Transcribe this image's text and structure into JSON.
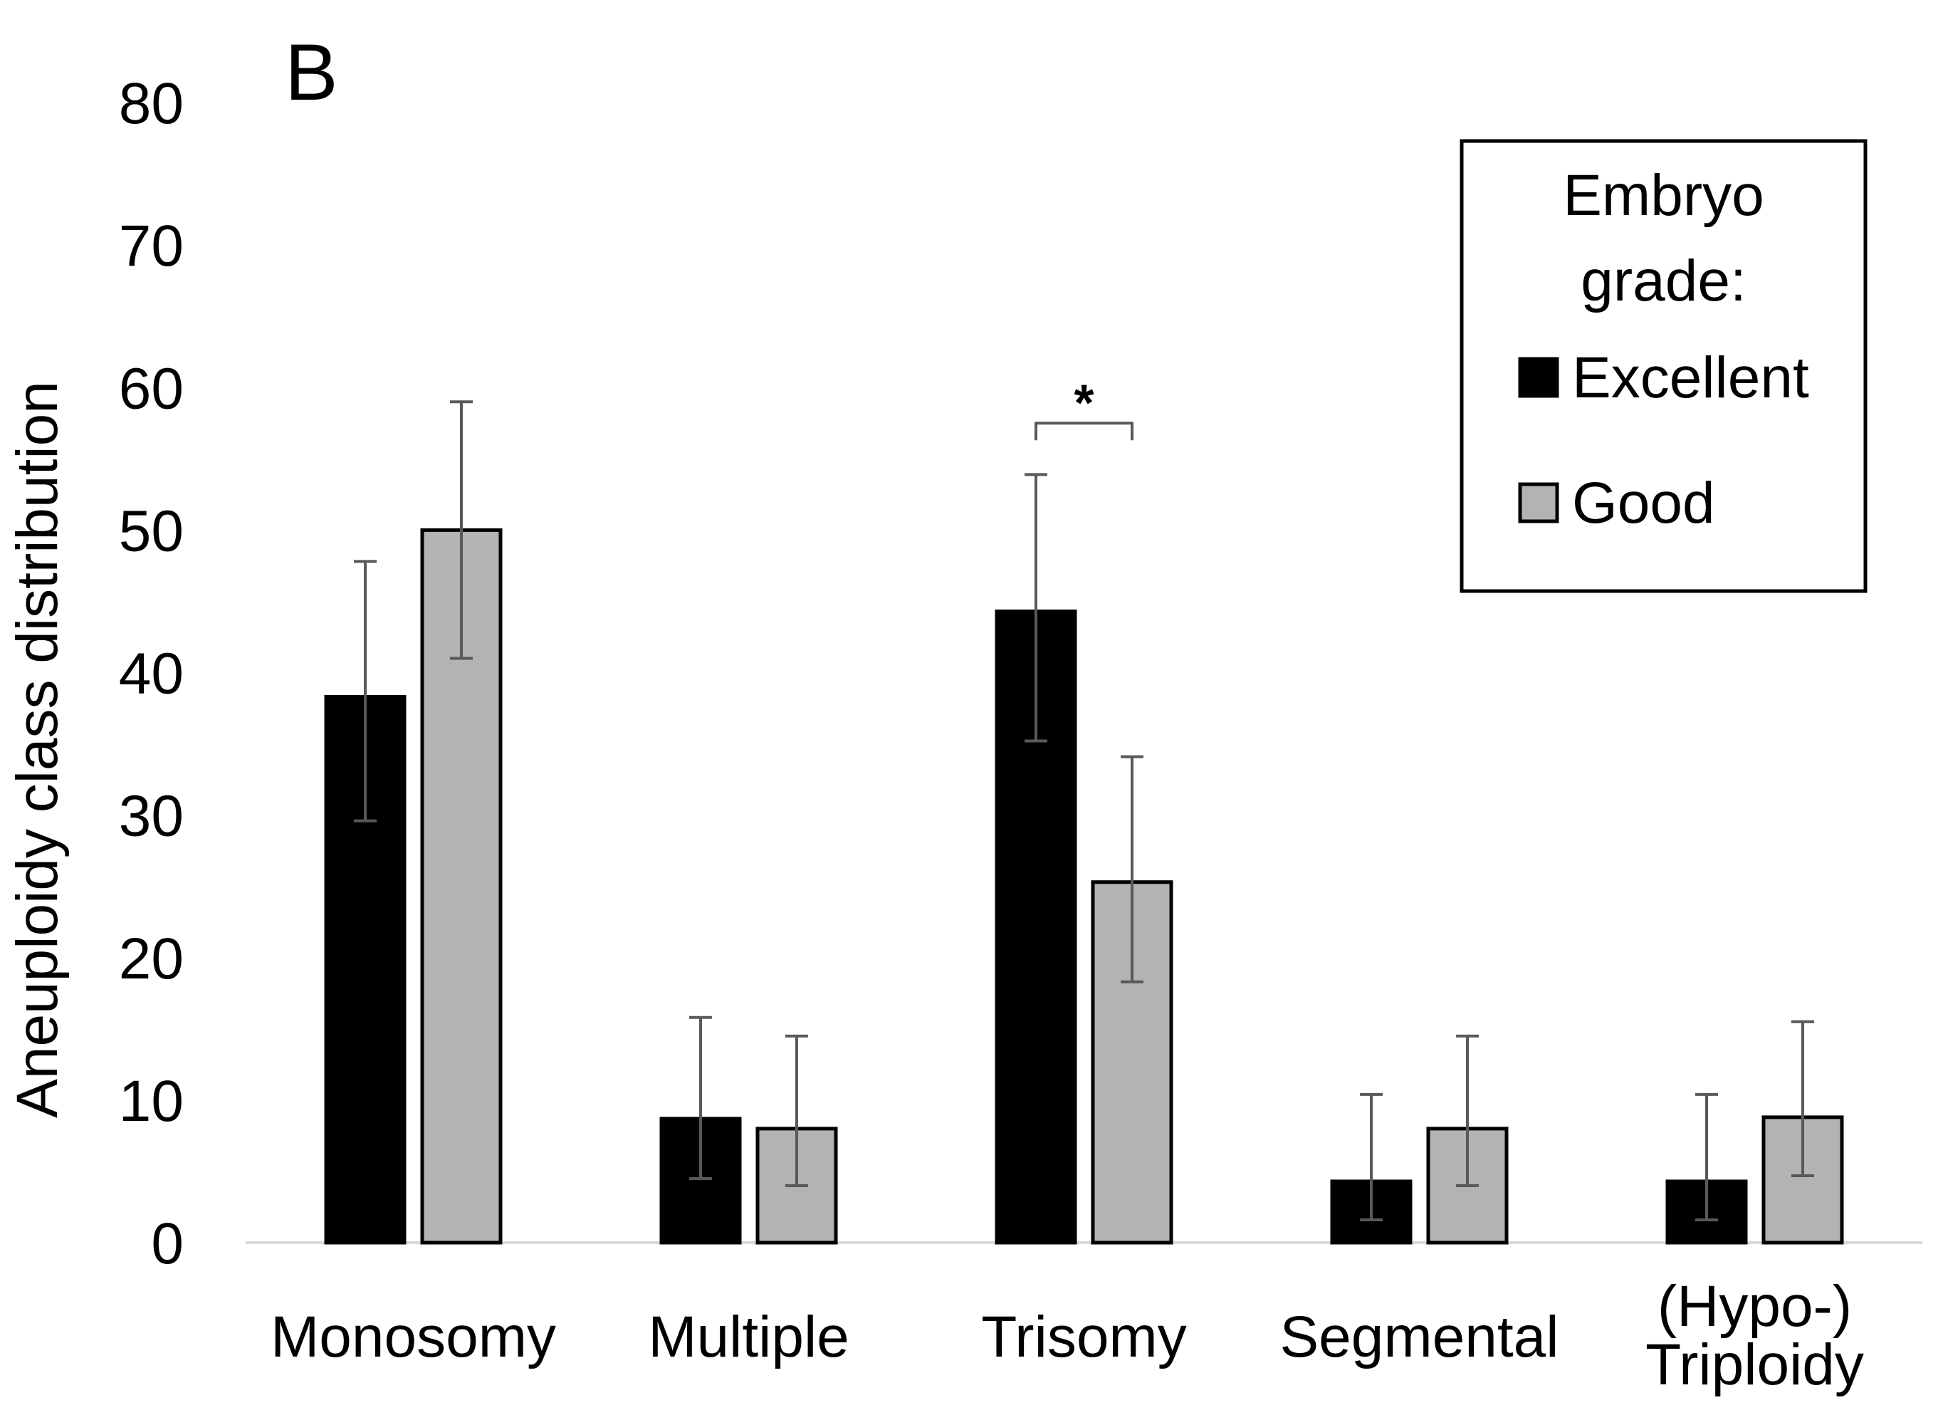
{
  "panel_label": "B",
  "chart_data": {
    "type": "bar",
    "title": "",
    "xlabel": "",
    "ylabel": "Aneuploidy class distribution",
    "ylim": [
      0,
      80
    ],
    "yticks": [
      0,
      10,
      20,
      30,
      40,
      50,
      60,
      70,
      80
    ],
    "categories": [
      {
        "lines": [
          "Monosomy"
        ]
      },
      {
        "lines": [
          "Multiple"
        ]
      },
      {
        "lines": [
          "Trisomy"
        ]
      },
      {
        "lines": [
          "Segmental"
        ]
      },
      {
        "lines": [
          "(Hypo-)",
          "Triploidy"
        ]
      }
    ],
    "series": [
      {
        "name": "Excellent",
        "color": "#000000",
        "values": [
          38.3,
          8.7,
          44.3,
          4.3,
          4.3
        ],
        "err_low": [
          29.6,
          4.5,
          35.2,
          1.6,
          1.6
        ],
        "err_high": [
          47.8,
          15.8,
          53.9,
          10.4,
          10.4
        ]
      },
      {
        "name": "Good",
        "color": "#b3b3b3",
        "values": [
          50.0,
          8.0,
          25.3,
          8.0,
          8.8
        ],
        "err_low": [
          41.0,
          4.0,
          18.3,
          4.0,
          4.7
        ],
        "err_high": [
          59.0,
          14.5,
          34.1,
          14.5,
          15.5
        ]
      }
    ],
    "annotations": [
      {
        "text": "*",
        "category_index": 2,
        "y": 57.5,
        "type": "significance-bracket"
      }
    ],
    "legend": {
      "title_lines": [
        "Embryo",
        "grade:"
      ],
      "position": "top-right"
    }
  }
}
